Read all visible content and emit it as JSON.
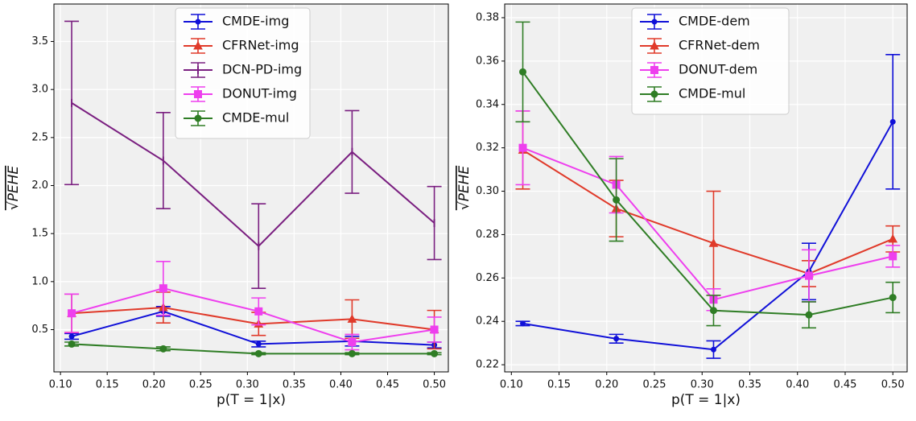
{
  "chart_data": [
    {
      "type": "line",
      "x_label": "p(T = 1|x)",
      "y_label": "√PEHE",
      "x": [
        0.112,
        0.21,
        0.312,
        0.412,
        0.5
      ],
      "xlim": [
        0.093,
        0.515
      ],
      "ylim": [
        0.06,
        3.89
      ],
      "xticks": [
        {
          "value": 0.1,
          "label": "0.10"
        },
        0.15,
        {
          "value": 0.2,
          "label": "0.20"
        },
        0.25,
        {
          "value": 0.3,
          "label": "0.30"
        },
        0.35,
        {
          "value": 0.4,
          "label": "0.40"
        },
        0.45,
        {
          "value": 0.5,
          "label": "0.50"
        }
      ],
      "yticks": [
        0.5,
        {
          "value": 1,
          "label": "1.0"
        },
        1.5,
        {
          "value": 2,
          "label": "2.0"
        },
        2.5,
        {
          "value": 3,
          "label": "3.0"
        },
        3.5
      ],
      "grid": true,
      "legend": "upper center",
      "series": [
        {
          "name": "CMDE-img",
          "color": "#1010d8",
          "marker": "dot",
          "values": [
            0.43,
            0.69,
            0.35,
            0.38,
            0.34
          ],
          "errors": [
            0.03,
            0.05,
            0.03,
            0.05,
            0.03
          ]
        },
        {
          "name": "CFRNet-img",
          "color": "#e03a2a",
          "marker": "triangle",
          "values": [
            0.67,
            0.73,
            0.56,
            0.61,
            0.5
          ],
          "errors": [
            0.2,
            0.16,
            0.12,
            0.2,
            0.2
          ]
        },
        {
          "name": "DCN-PD-img",
          "color": "#7a1f80",
          "marker": "tick",
          "values": [
            2.86,
            2.26,
            1.37,
            2.35,
            1.61
          ],
          "errors": [
            0.85,
            0.5,
            0.44,
            0.43,
            0.38
          ]
        },
        {
          "name": "DONUT-img",
          "color": "#ee3fee",
          "marker": "square",
          "values": [
            0.67,
            0.93,
            0.69,
            0.37,
            0.5
          ],
          "errors": [
            0.2,
            0.28,
            0.14,
            0.08,
            0.13
          ]
        },
        {
          "name": "CMDE-mul",
          "color": "#2f7d25",
          "marker": "circle",
          "values": [
            0.35,
            0.3,
            0.25,
            0.25,
            0.25
          ],
          "errors": [
            0.02,
            0.02,
            0.01,
            0.01,
            0.01
          ]
        }
      ]
    },
    {
      "type": "line",
      "x_label": "p(T = 1|x)",
      "y_label": "√PEHE",
      "x": [
        0.112,
        0.21,
        0.312,
        0.412,
        0.5
      ],
      "xlim": [
        0.093,
        0.515
      ],
      "ylim": [
        0.2167,
        0.3863
      ],
      "xticks": [
        {
          "value": 0.1,
          "label": "0.10"
        },
        0.15,
        {
          "value": 0.2,
          "label": "0.20"
        },
        0.25,
        {
          "value": 0.3,
          "label": "0.30"
        },
        0.35,
        {
          "value": 0.4,
          "label": "0.40"
        },
        0.45,
        {
          "value": 0.5,
          "label": "0.50"
        }
      ],
      "yticks": [
        0.22,
        0.24,
        0.26,
        0.28,
        {
          "value": 0.3,
          "label": "0.30"
        },
        0.32,
        0.34,
        0.36,
        0.38
      ],
      "grid": true,
      "legend": "upper center",
      "series": [
        {
          "name": "CMDE-dem",
          "color": "#1010d8",
          "marker": "dot",
          "values": [
            0.239,
            0.232,
            0.227,
            0.263,
            0.332
          ],
          "errors": [
            0.001,
            0.002,
            0.004,
            0.013,
            0.031
          ]
        },
        {
          "name": "CFRNet-dem",
          "color": "#e03a2a",
          "marker": "triangle",
          "values": [
            0.319,
            0.292,
            0.276,
            0.262,
            0.278
          ],
          "errors": [
            0.018,
            0.013,
            0.024,
            0.006,
            0.006
          ]
        },
        {
          "name": "DONUT-dem",
          "color": "#ee3fee",
          "marker": "square",
          "values": [
            0.32,
            0.303,
            0.25,
            0.261,
            0.27
          ],
          "errors": [
            0.017,
            0.013,
            0.005,
            0.012,
            0.005
          ]
        },
        {
          "name": "CMDE-mul",
          "color": "#2f7d25",
          "marker": "circle",
          "values": [
            0.355,
            0.296,
            0.245,
            0.243,
            0.251
          ],
          "errors": [
            0.023,
            0.019,
            0.007,
            0.006,
            0.007
          ]
        }
      ]
    }
  ]
}
